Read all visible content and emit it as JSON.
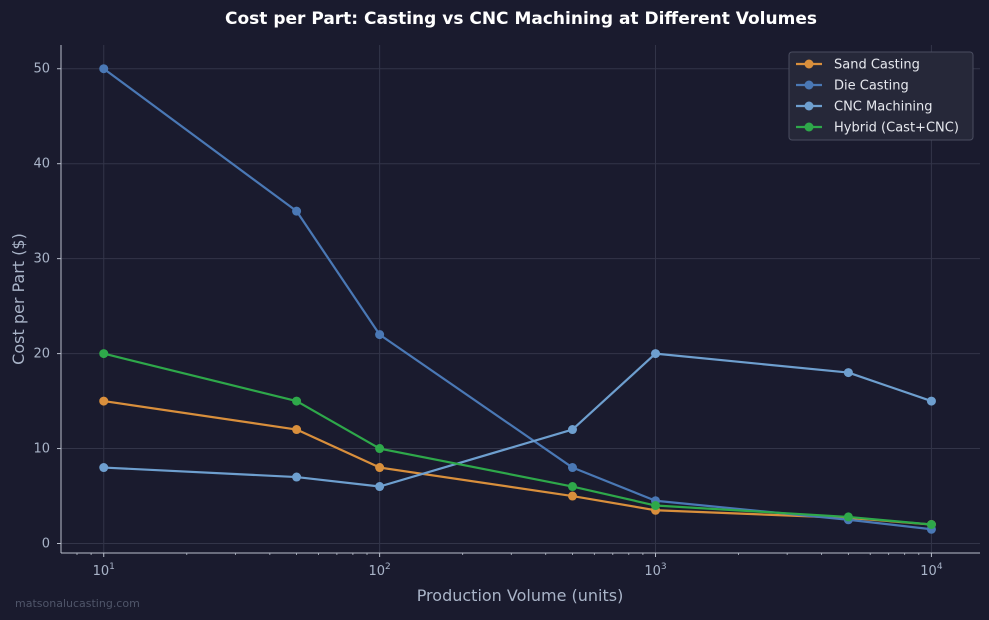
{
  "chart_data": {
    "type": "line",
    "title": "Cost per Part: Casting vs CNC Machining at Different Volumes",
    "xlabel": "Production Volume (units)",
    "ylabel": "Cost per Part ($)",
    "x_scale": "log",
    "xlim": [
      7,
      15000
    ],
    "ylim": [
      -1,
      52.5
    ],
    "x_ticks": [
      {
        "value": 10,
        "base": "10",
        "exp": "1"
      },
      {
        "value": 100,
        "base": "10",
        "exp": "2"
      },
      {
        "value": 1000,
        "base": "10",
        "exp": "3"
      },
      {
        "value": 10000,
        "base": "10",
        "exp": "4"
      }
    ],
    "y_ticks": [
      0,
      10,
      20,
      30,
      40,
      50
    ],
    "grid": true,
    "legend_position": "top-right",
    "x": [
      10,
      50,
      100,
      500,
      1000,
      5000,
      10000
    ],
    "series": [
      {
        "name": "Sand Casting",
        "color": "#d98f3c",
        "values": [
          15,
          12,
          8,
          5,
          3.5,
          2.7,
          2
        ]
      },
      {
        "name": "Die Casting",
        "color": "#4a78b5",
        "values": [
          50,
          35,
          22,
          8,
          4.5,
          2.5,
          1.5
        ]
      },
      {
        "name": "CNC Machining",
        "color": "#6e9fcf",
        "values": [
          8,
          7,
          6,
          12,
          20,
          18,
          15
        ]
      },
      {
        "name": "Hybrid (Cast+CNC)",
        "color": "#2ea84a",
        "values": [
          20,
          15,
          10,
          6,
          4,
          2.8,
          2
        ]
      }
    ]
  },
  "watermark": "matsonalucasting.com"
}
